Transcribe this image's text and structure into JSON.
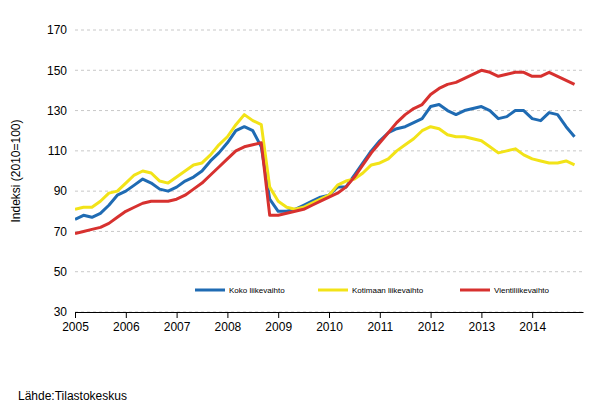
{
  "chart_data": {
    "type": "line",
    "y_label": "Indeksi (2010=100)",
    "source": "Lähde:Tilastokeskus",
    "x": [
      2005,
      2005.167,
      2005.333,
      2005.5,
      2005.667,
      2005.833,
      2006,
      2006.167,
      2006.333,
      2006.5,
      2006.667,
      2006.833,
      2007,
      2007.167,
      2007.333,
      2007.5,
      2007.667,
      2007.833,
      2008,
      2008.167,
      2008.333,
      2008.5,
      2008.667,
      2008.833,
      2009,
      2009.167,
      2009.333,
      2009.5,
      2009.667,
      2009.833,
      2010,
      2010.167,
      2010.333,
      2010.5,
      2010.667,
      2010.833,
      2011,
      2011.167,
      2011.333,
      2011.5,
      2011.667,
      2011.833,
      2012,
      2012.167,
      2012.333,
      2012.5,
      2012.667,
      2012.833,
      2013,
      2013.167,
      2013.333,
      2013.5,
      2013.667,
      2013.833,
      2014,
      2014.167,
      2014.333,
      2014.5,
      2014.667,
      2014.833
    ],
    "series": [
      {
        "name": "Koko liikevaihto",
        "color": "#1f6bb3",
        "values": [
          76,
          78,
          77,
          79,
          83,
          88,
          90,
          93,
          96,
          94,
          91,
          90,
          92,
          95,
          97,
          100,
          105,
          109,
          114,
          120,
          122,
          120,
          112,
          86,
          80,
          80,
          81,
          83,
          85,
          87,
          88,
          92,
          92,
          98,
          104,
          110,
          115,
          119,
          121,
          122,
          124,
          126,
          132,
          133,
          130,
          128,
          130,
          131,
          132,
          130,
          126,
          127,
          130,
          130,
          126,
          125,
          129,
          128,
          122,
          117
        ]
      },
      {
        "name": "Kotimaan liikevaihto",
        "color": "#f2e318",
        "values": [
          81,
          82,
          82,
          85,
          89,
          90,
          94,
          98,
          100,
          99,
          95,
          94,
          97,
          100,
          103,
          104,
          108,
          113,
          117,
          123,
          128,
          125,
          123,
          92,
          85,
          82,
          81,
          82,
          84,
          86,
          88,
          93,
          95,
          96,
          99,
          103,
          104,
          106,
          110,
          113,
          116,
          120,
          122,
          121,
          118,
          117,
          117,
          116,
          115,
          112,
          109,
          110,
          111,
          108,
          106,
          105,
          104,
          104,
          105,
          103
        ]
      },
      {
        "name": "Vientiliikevaihto",
        "color": "#d7312f",
        "values": [
          69,
          70,
          71,
          72,
          74,
          77,
          80,
          82,
          84,
          85,
          85,
          85,
          86,
          88,
          91,
          94,
          98,
          102,
          106,
          110,
          112,
          113,
          114,
          78,
          78,
          79,
          80,
          81,
          83,
          85,
          87,
          89,
          92,
          97,
          103,
          109,
          114,
          119,
          124,
          128,
          131,
          133,
          138,
          141,
          143,
          144,
          146,
          148,
          150,
          149,
          147,
          148,
          149,
          149,
          147,
          147,
          149,
          147,
          145,
          143
        ]
      }
    ],
    "xlim": [
      2005,
      2015
    ],
    "xticks": [
      2005,
      2006,
      2007,
      2008,
      2009,
      2010,
      2011,
      2012,
      2013,
      2014
    ],
    "ylim": [
      30,
      170
    ],
    "yticks": [
      30,
      50,
      70,
      90,
      110,
      130,
      150,
      170
    ],
    "grid": true,
    "legend": "bottom"
  }
}
